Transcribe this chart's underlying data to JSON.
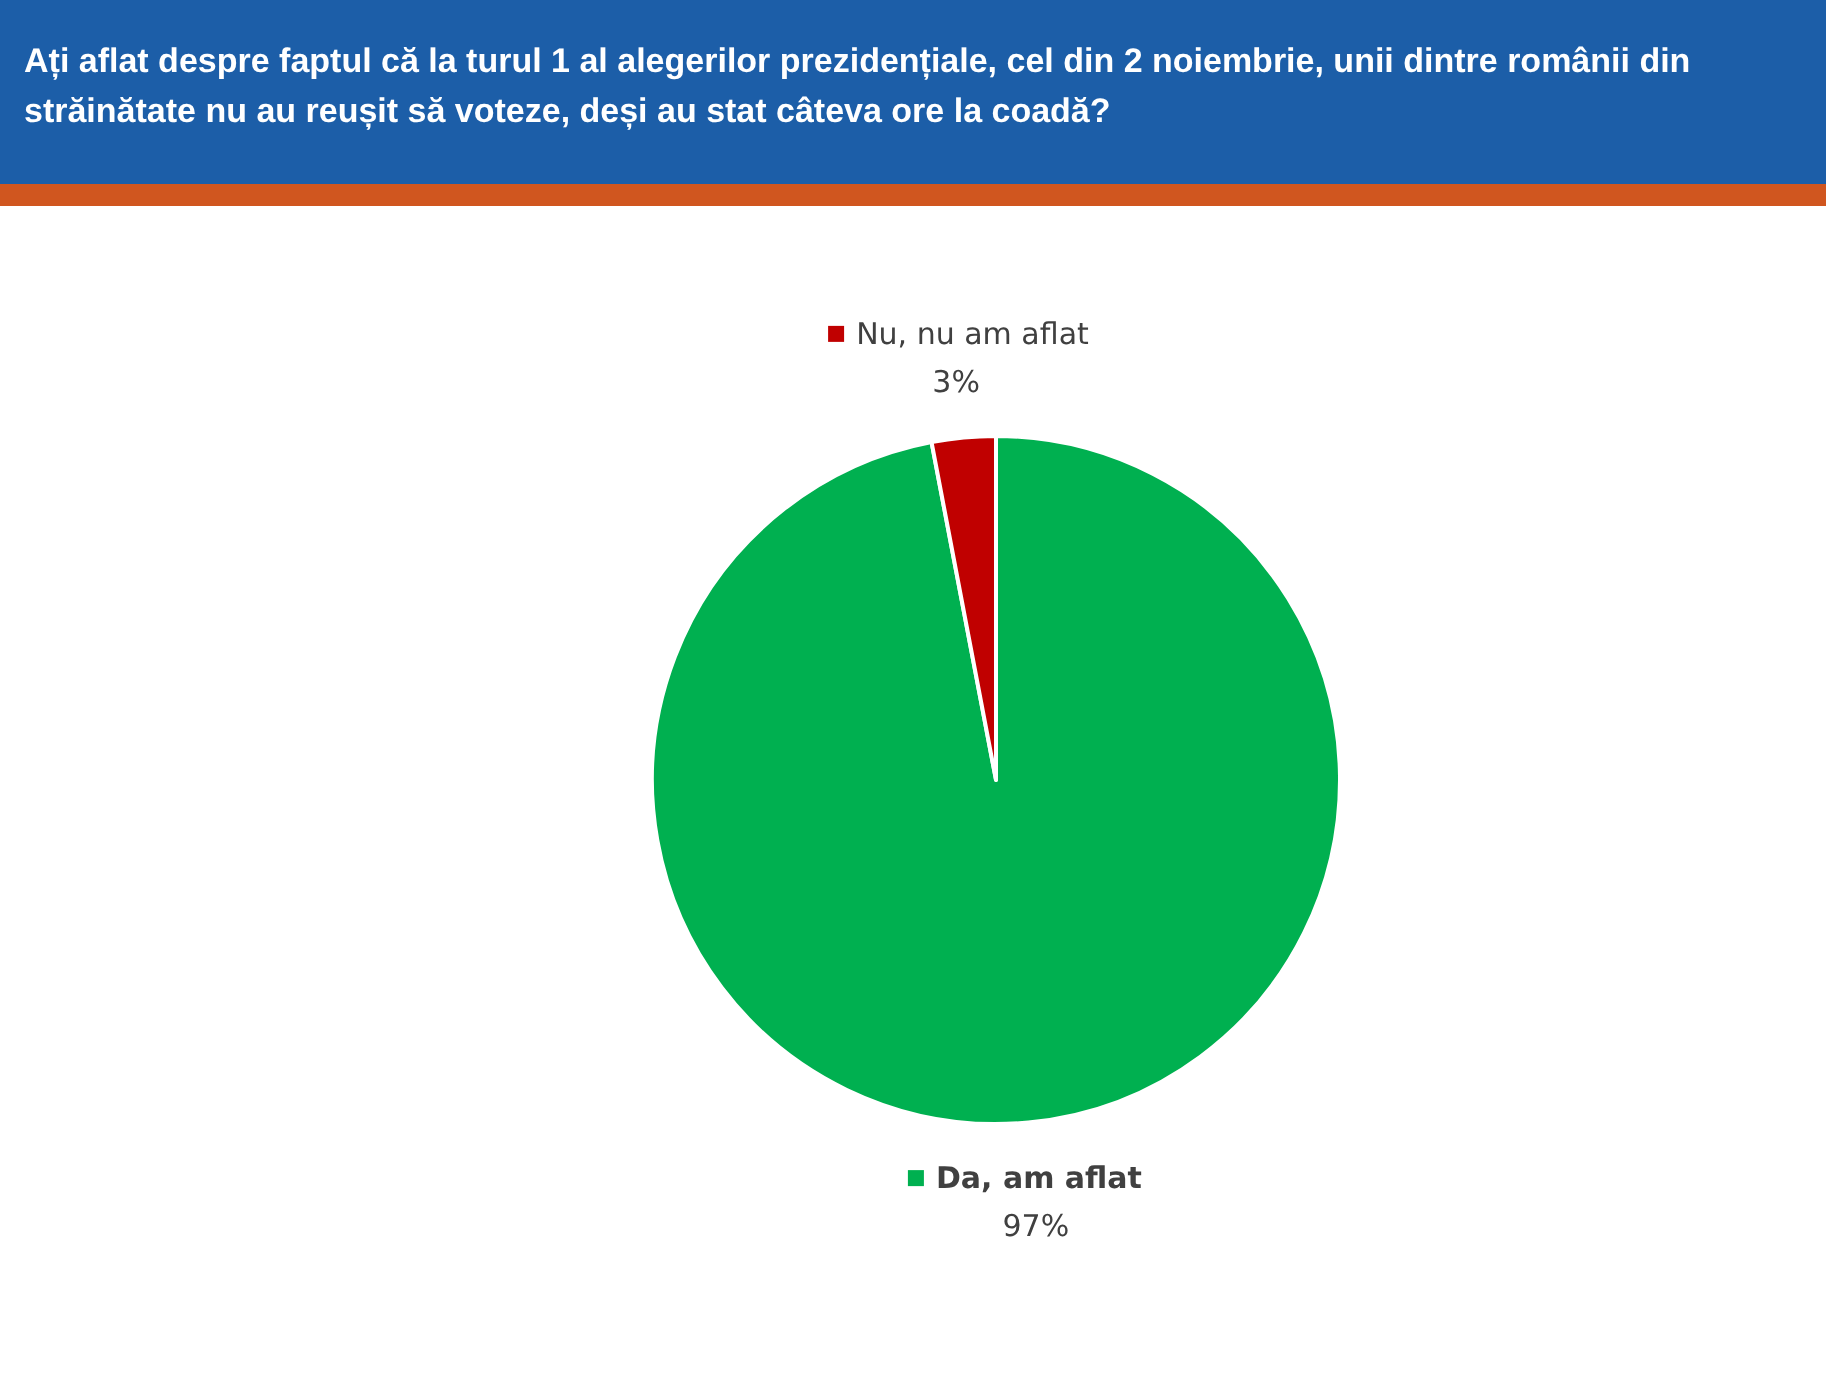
{
  "chart_data": {
    "type": "pie",
    "title": "Ați aflat despre faptul că la turul 1 al alegerilor prezidențiale, cel din 2 noiembrie, unii dintre românii din străinătate nu au reușit să voteze, deși au stat câteva ore la coadă?",
    "categories": [
      "Da, am aflat",
      "Nu, nu am aflat"
    ],
    "values": [
      97,
      3
    ],
    "colors": [
      "#00b050",
      "#c00000"
    ],
    "value_labels": [
      "97%",
      "3%"
    ],
    "legend": "top"
  }
}
